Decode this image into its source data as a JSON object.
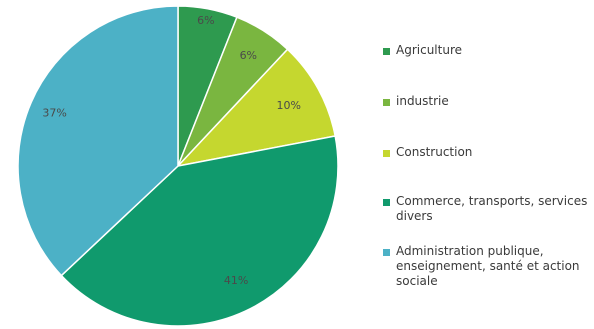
{
  "chart_data": {
    "type": "pie",
    "categories": [
      "Agriculture",
      "industrie",
      "Construction",
      "Commerce, transports, services divers",
      "Administration publique, enseignement, santé et action sociale"
    ],
    "values": [
      6,
      6,
      10,
      41,
      37
    ],
    "value_labels": [
      "6%",
      "6%",
      "10%",
      "41%",
      "37%"
    ],
    "colors": [
      "#2e9a4f",
      "#7ab640",
      "#c5d72f",
      "#109a6d",
      "#4cb1c6"
    ],
    "legend_position": "right"
  }
}
